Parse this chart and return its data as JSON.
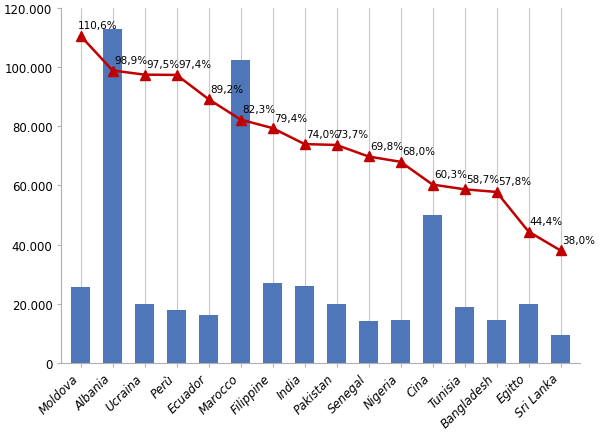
{
  "categories": [
    "Moldova",
    "Albania",
    "Ucraina",
    "Perù",
    "Ecuador",
    "Marocco",
    "Filippine",
    "India",
    "Pakistan",
    "Senegal",
    "Nigeria",
    "Cina",
    "Tunisia",
    "Bangladesh",
    "Egitto",
    "Sri Lanka"
  ],
  "bar_values": [
    25500,
    113000,
    20000,
    18000,
    16000,
    102500,
    27000,
    26000,
    20000,
    14000,
    14500,
    50000,
    19000,
    14500,
    20000,
    9500
  ],
  "line_values": [
    110600,
    98900,
    97500,
    97400,
    89200,
    82300,
    79400,
    74000,
    73700,
    69800,
    68000,
    60300,
    58700,
    57800,
    44400,
    38000
  ],
  "line_labels": [
    "110,6%",
    "98,9%",
    "97,5%",
    "97,4%",
    "89,2%",
    "82,3%",
    "79,4%",
    "74,0%",
    "73,7%",
    "69,8%",
    "68,0%",
    "60,3%",
    "58,7%",
    "57,8%",
    "44,4%",
    "38,0%"
  ],
  "bar_color": "#4E76B8",
  "line_color": "#C00000",
  "marker_color": "#C00000",
  "y_max": 120000,
  "y_ticks": [
    0,
    20000,
    40000,
    60000,
    80000,
    100000,
    120000
  ],
  "y_tick_labels": [
    "0",
    "20.000",
    "40.000",
    "60.000",
    "80.000",
    "100.000",
    "120.000"
  ],
  "background_color": "#FFFFFF",
  "grid_color": "#C8C8C8",
  "label_offsets_x": [
    -2,
    1,
    1,
    1,
    1,
    1,
    1,
    1,
    -1,
    1,
    1,
    1,
    1,
    1,
    1,
    1
  ],
  "label_offsets_y": [
    4,
    4,
    4,
    4,
    4,
    4,
    4,
    4,
    4,
    4,
    4,
    4,
    4,
    4,
    4,
    4
  ]
}
